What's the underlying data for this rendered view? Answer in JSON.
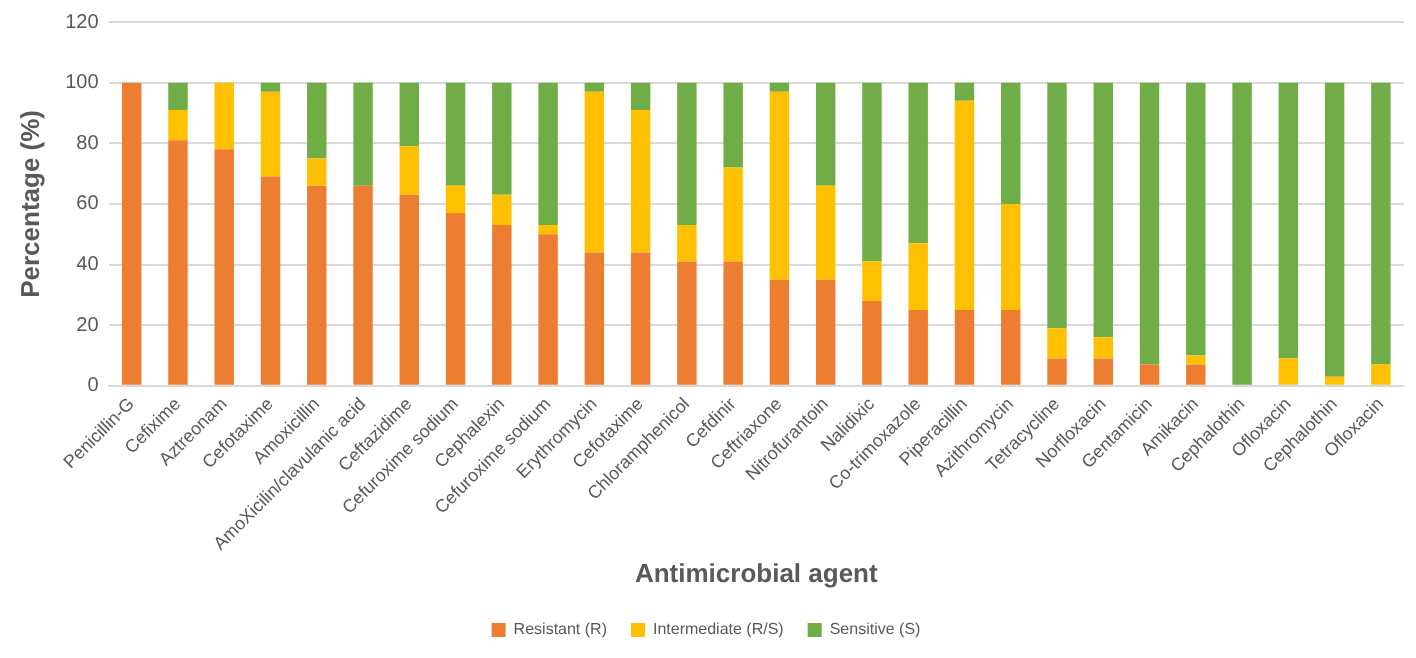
{
  "chart_data": {
    "type": "bar",
    "stacked": true,
    "xlabel": "Antimicrobial agent",
    "ylabel": "Percentage (%)",
    "categories": [
      "Penicillin-G",
      "Cefixime",
      "Aztreonam",
      "Cefotaxime",
      "Amoxicillin",
      "AmoXicilin/clavulanic acid",
      "Ceftazidime",
      "Cefuroxime sodium",
      "Cephalexin",
      "Cefuroxime sodium",
      "Erythromycin",
      "Cefotaxime",
      "Chloramphenicol",
      "Cefdinir",
      "Ceftriaxone",
      "Nitrofurantoin",
      "Nalidixic",
      "Co-trimoxazole",
      "Piperacillin",
      "Azithromycin",
      "Tetracycline",
      "Norfloxacin",
      "Gentamicin",
      "Amikacin",
      "Cephalothin",
      "Ofloxacin",
      "Cephalothin",
      "Ofloxacin"
    ],
    "series": [
      {
        "name": "Resistant (R)",
        "color": "#ed7d31",
        "values": [
          100,
          81,
          78,
          69,
          66,
          66,
          63,
          57,
          53,
          50,
          44,
          44,
          41,
          41,
          35,
          35,
          28,
          25,
          25,
          25,
          9,
          9,
          7,
          7,
          0,
          0,
          0,
          0
        ]
      },
      {
        "name": "Intermediate (R/S)",
        "color": "#ffc000",
        "values": [
          0,
          10,
          22,
          28,
          9,
          0,
          16,
          9,
          10,
          3,
          53,
          47,
          12,
          31,
          62,
          31,
          13,
          22,
          69,
          35,
          10,
          7,
          0,
          3,
          0,
          9,
          3,
          7
        ]
      },
      {
        "name": "Sensitive (S)",
        "color": "#70ad47",
        "values": [
          0,
          9,
          0,
          3,
          25,
          34,
          21,
          34,
          37,
          47,
          3,
          9,
          47,
          28,
          3,
          34,
          59,
          53,
          6,
          40,
          81,
          84,
          93,
          90,
          100,
          91,
          97,
          93
        ]
      }
    ],
    "ylim": [
      0,
      120
    ],
    "yticks": [
      0,
      20,
      40,
      60,
      80,
      100,
      120
    ],
    "grid": "y",
    "legend": "bottom"
  }
}
